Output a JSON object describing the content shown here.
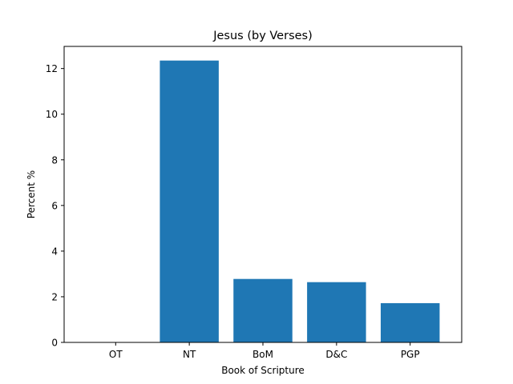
{
  "chart_data": {
    "type": "bar",
    "title": "Jesus (by Verses)",
    "xlabel": "Book of Scripture",
    "ylabel": "Percent %",
    "categories": [
      "OT",
      "NT",
      "BoM",
      "D&C",
      "PGP"
    ],
    "values": [
      0,
      12.35,
      2.78,
      2.64,
      1.72
    ],
    "ylim": [
      0,
      12.97
    ],
    "yticks": [
      0,
      2,
      4,
      6,
      8,
      10,
      12
    ],
    "bar_color": "#1f77b4",
    "grid": false,
    "legend": "none"
  }
}
